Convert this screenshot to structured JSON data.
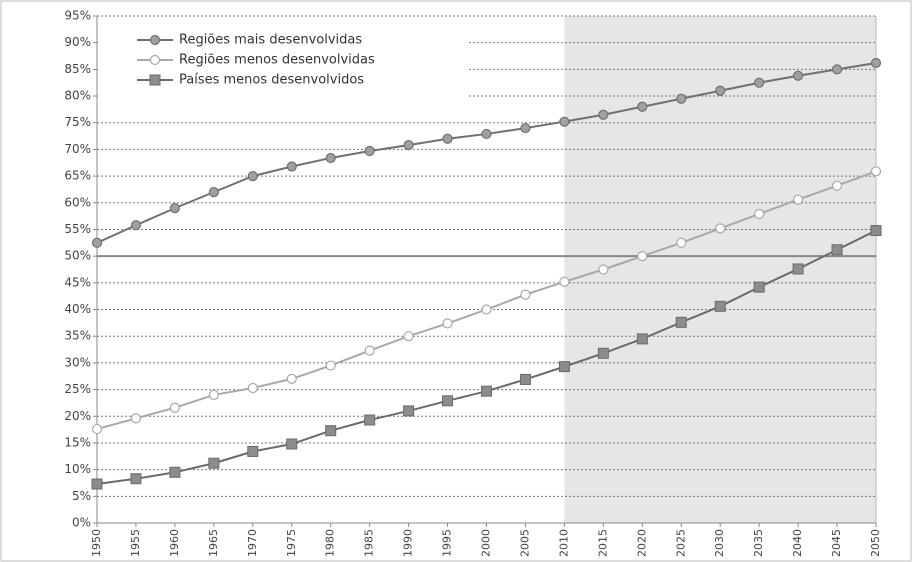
{
  "chart_data": {
    "type": "line",
    "x": [
      1950,
      1955,
      1960,
      1965,
      1970,
      1975,
      1980,
      1985,
      1990,
      1995,
      2000,
      2005,
      2010,
      2015,
      2020,
      2025,
      2030,
      2035,
      2040,
      2045,
      2050
    ],
    "series": [
      {
        "name": "Regiões mais desenvolvidas",
        "color": "#707070",
        "marker": "circle",
        "marker_fill": "#a0a0a0",
        "values": [
          52.5,
          55.8,
          59,
          62,
          65,
          66.8,
          68.4,
          69.7,
          70.8,
          72,
          72.9,
          74,
          75.2,
          76.5,
          78,
          79.5,
          81,
          82.5,
          83.8,
          85,
          86.2
        ]
      },
      {
        "name": "Regiões menos desenvolvidas",
        "color": "#a8a8a8",
        "marker": "circle",
        "marker_fill": "#ffffff",
        "values": [
          17.6,
          19.6,
          21.6,
          24,
          25.3,
          27,
          29.5,
          32.3,
          35,
          37.4,
          40,
          42.8,
          45.2,
          47.5,
          50,
          52.5,
          55.2,
          57.9,
          60.6,
          63.2,
          65.9
        ]
      },
      {
        "name": "Países menos desenvolvidos",
        "color": "#6a6a6a",
        "marker": "square",
        "marker_fill": "#8c8c8c",
        "values": [
          7.3,
          8.3,
          9.5,
          11.2,
          13.4,
          14.8,
          17.3,
          19.3,
          21,
          22.9,
          24.7,
          26.9,
          29.3,
          31.8,
          34.5,
          37.6,
          40.6,
          44.2,
          47.6,
          51.2,
          54.8
        ]
      }
    ],
    "xlim": [
      1950,
      2050
    ],
    "xticks": [
      1950,
      1955,
      1960,
      1965,
      1970,
      1975,
      1980,
      1985,
      1990,
      1995,
      2000,
      2005,
      2010,
      2015,
      2020,
      2025,
      2030,
      2035,
      2040,
      2045,
      2050
    ],
    "ylim": [
      0,
      95
    ],
    "yticks": [
      {
        "value": 0,
        "label": "0%"
      },
      {
        "value": 5,
        "label": "5%"
      },
      {
        "value": 10,
        "label": "10%"
      },
      {
        "value": 15,
        "label": "15%"
      },
      {
        "value": 20,
        "label": "20%"
      },
      {
        "value": 25,
        "label": "25%"
      },
      {
        "value": 30,
        "label": "30%"
      },
      {
        "value": 35,
        "label": "35%"
      },
      {
        "value": 40,
        "label": "40%"
      },
      {
        "value": 45,
        "label": "45%"
      },
      {
        "value": 50,
        "label": "50%"
      },
      {
        "value": 55,
        "label": "55%"
      },
      {
        "value": 60,
        "label": "60%"
      },
      {
        "value": 65,
        "label": "65%"
      },
      {
        "value": 70,
        "label": "70%"
      },
      {
        "value": 75,
        "label": "75%"
      },
      {
        "value": 80,
        "label": "80%"
      },
      {
        "value": 85,
        "label": "85%"
      },
      {
        "value": 90,
        "label": "90%"
      },
      {
        "value": 95,
        "label": "95%"
      }
    ],
    "grid": true,
    "shaded_range": [
      2010,
      2050
    ],
    "reference_line": 50,
    "legend": "upper left"
  }
}
